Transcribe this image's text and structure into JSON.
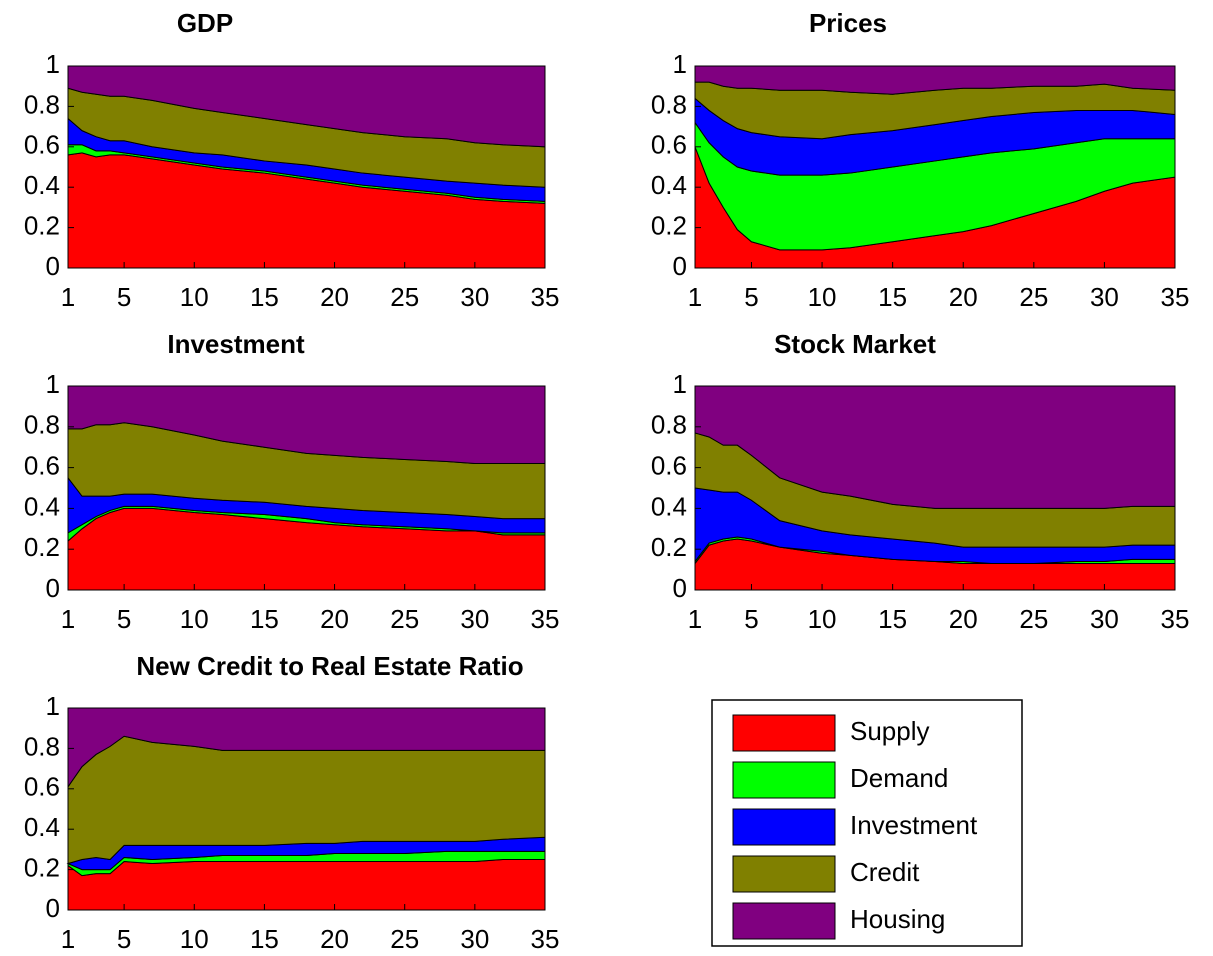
{
  "chart_data": [
    {
      "type": "stacked-area",
      "title": "GDP",
      "x": [
        1,
        2,
        3,
        4,
        5,
        7,
        10,
        12,
        15,
        18,
        20,
        22,
        25,
        28,
        30,
        32,
        35
      ],
      "series": [
        {
          "values": [
            0.56,
            0.57,
            0.55,
            0.56,
            0.56,
            0.54,
            0.51,
            0.49,
            0.47,
            0.44,
            0.42,
            0.4,
            0.38,
            0.36,
            0.34,
            0.33,
            0.32
          ]
        },
        {
          "values": [
            0.05,
            0.04,
            0.03,
            0.02,
            0.01,
            0.01,
            0.01,
            0.01,
            0.01,
            0.01,
            0.01,
            0.01,
            0.01,
            0.01,
            0.01,
            0.01,
            0.01
          ]
        },
        {
          "values": [
            0.13,
            0.07,
            0.07,
            0.05,
            0.06,
            0.05,
            0.05,
            0.06,
            0.05,
            0.06,
            0.06,
            0.06,
            0.06,
            0.06,
            0.07,
            0.07,
            0.07
          ]
        },
        {
          "values": [
            0.15,
            0.19,
            0.21,
            0.22,
            0.22,
            0.23,
            0.22,
            0.21,
            0.21,
            0.2,
            0.2,
            0.2,
            0.2,
            0.21,
            0.2,
            0.2,
            0.2
          ]
        },
        {
          "values": [
            0.11,
            0.13,
            0.14,
            0.15,
            0.15,
            0.17,
            0.21,
            0.23,
            0.26,
            0.29,
            0.31,
            0.33,
            0.35,
            0.36,
            0.38,
            0.39,
            0.4
          ]
        }
      ],
      "xlim": [
        1,
        35
      ],
      "xticks": [
        1,
        5,
        10,
        15,
        20,
        25,
        30,
        35
      ],
      "ylim": [
        0,
        1
      ],
      "yticks": [
        0,
        0.2,
        0.4,
        0.6,
        0.8,
        1
      ]
    },
    {
      "type": "stacked-area",
      "title": "Prices",
      "x": [
        1,
        2,
        3,
        4,
        5,
        7,
        10,
        12,
        15,
        18,
        20,
        22,
        25,
        28,
        30,
        32,
        35
      ],
      "series": [
        {
          "values": [
            0.6,
            0.42,
            0.3,
            0.19,
            0.13,
            0.09,
            0.09,
            0.1,
            0.13,
            0.16,
            0.18,
            0.21,
            0.27,
            0.33,
            0.38,
            0.42,
            0.45
          ]
        },
        {
          "values": [
            0.12,
            0.2,
            0.25,
            0.31,
            0.35,
            0.37,
            0.37,
            0.37,
            0.37,
            0.37,
            0.37,
            0.36,
            0.32,
            0.29,
            0.26,
            0.22,
            0.19
          ]
        },
        {
          "values": [
            0.12,
            0.16,
            0.18,
            0.19,
            0.19,
            0.19,
            0.18,
            0.19,
            0.18,
            0.18,
            0.18,
            0.18,
            0.18,
            0.16,
            0.14,
            0.14,
            0.12
          ]
        },
        {
          "values": [
            0.08,
            0.14,
            0.17,
            0.2,
            0.22,
            0.23,
            0.24,
            0.21,
            0.18,
            0.17,
            0.16,
            0.14,
            0.13,
            0.12,
            0.13,
            0.11,
            0.12
          ]
        },
        {
          "values": [
            0.08,
            0.08,
            0.1,
            0.11,
            0.11,
            0.12,
            0.12,
            0.13,
            0.14,
            0.12,
            0.11,
            0.11,
            0.1,
            0.1,
            0.09,
            0.11,
            0.12
          ]
        }
      ],
      "xlim": [
        1,
        35
      ],
      "xticks": [
        1,
        5,
        10,
        15,
        20,
        25,
        30,
        35
      ],
      "ylim": [
        0,
        1
      ],
      "yticks": [
        0,
        0.2,
        0.4,
        0.6,
        0.8,
        1
      ]
    },
    {
      "type": "stacked-area",
      "title": "Investment",
      "x": [
        1,
        2,
        3,
        4,
        5,
        7,
        10,
        12,
        15,
        18,
        20,
        22,
        25,
        28,
        30,
        32,
        35
      ],
      "series": [
        {
          "values": [
            0.24,
            0.3,
            0.35,
            0.38,
            0.4,
            0.4,
            0.38,
            0.37,
            0.35,
            0.33,
            0.32,
            0.31,
            0.3,
            0.29,
            0.29,
            0.27,
            0.27
          ]
        },
        {
          "values": [
            0.04,
            0.02,
            0.01,
            0.01,
            0.01,
            0.01,
            0.01,
            0.01,
            0.02,
            0.02,
            0.01,
            0.01,
            0.01,
            0.01,
            0.0,
            0.01,
            0.01
          ]
        },
        {
          "values": [
            0.27,
            0.14,
            0.1,
            0.07,
            0.06,
            0.06,
            0.06,
            0.06,
            0.06,
            0.06,
            0.07,
            0.07,
            0.07,
            0.07,
            0.07,
            0.07,
            0.07
          ]
        },
        {
          "values": [
            0.24,
            0.33,
            0.35,
            0.35,
            0.35,
            0.33,
            0.31,
            0.29,
            0.27,
            0.26,
            0.26,
            0.26,
            0.26,
            0.26,
            0.26,
            0.27,
            0.27
          ]
        },
        {
          "values": [
            0.21,
            0.21,
            0.19,
            0.19,
            0.18,
            0.2,
            0.24,
            0.27,
            0.3,
            0.33,
            0.34,
            0.35,
            0.36,
            0.37,
            0.38,
            0.38,
            0.38
          ]
        }
      ],
      "xlim": [
        1,
        35
      ],
      "xticks": [
        1,
        5,
        10,
        15,
        20,
        25,
        30,
        35
      ],
      "ylim": [
        0,
        1
      ],
      "yticks": [
        0,
        0.2,
        0.4,
        0.6,
        0.8,
        1
      ]
    },
    {
      "type": "stacked-area",
      "title": "Stock Market",
      "x": [
        1,
        2,
        3,
        4,
        5,
        7,
        10,
        12,
        15,
        18,
        20,
        22,
        25,
        28,
        30,
        32,
        35
      ],
      "series": [
        {
          "values": [
            0.13,
            0.22,
            0.24,
            0.25,
            0.24,
            0.21,
            0.18,
            0.17,
            0.15,
            0.14,
            0.13,
            0.13,
            0.13,
            0.13,
            0.13,
            0.13,
            0.13
          ]
        },
        {
          "values": [
            0.01,
            0.01,
            0.01,
            0.01,
            0.01,
            0.0,
            0.01,
            0.0,
            0.0,
            0.0,
            0.01,
            0.0,
            0.0,
            0.01,
            0.01,
            0.02,
            0.02
          ]
        },
        {
          "values": [
            0.36,
            0.26,
            0.23,
            0.22,
            0.19,
            0.13,
            0.1,
            0.1,
            0.1,
            0.09,
            0.07,
            0.08,
            0.08,
            0.07,
            0.07,
            0.07,
            0.07
          ]
        },
        {
          "values": [
            0.27,
            0.26,
            0.23,
            0.23,
            0.22,
            0.21,
            0.19,
            0.19,
            0.17,
            0.17,
            0.19,
            0.19,
            0.19,
            0.19,
            0.19,
            0.19,
            0.19
          ]
        },
        {
          "values": [
            0.23,
            0.25,
            0.29,
            0.29,
            0.34,
            0.45,
            0.52,
            0.54,
            0.58,
            0.6,
            0.6,
            0.6,
            0.6,
            0.6,
            0.6,
            0.59,
            0.59
          ]
        }
      ],
      "xlim": [
        1,
        35
      ],
      "xticks": [
        1,
        5,
        10,
        15,
        20,
        25,
        30,
        35
      ],
      "ylim": [
        0,
        1
      ],
      "yticks": [
        0,
        0.2,
        0.4,
        0.6,
        0.8,
        1
      ]
    },
    {
      "type": "stacked-area",
      "title": "New Credit to Real Estate Ratio",
      "x": [
        1,
        2,
        3,
        4,
        5,
        7,
        10,
        12,
        15,
        18,
        20,
        22,
        25,
        28,
        30,
        32,
        35
      ],
      "series": [
        {
          "values": [
            0.22,
            0.17,
            0.18,
            0.18,
            0.24,
            0.23,
            0.24,
            0.24,
            0.24,
            0.24,
            0.24,
            0.24,
            0.24,
            0.24,
            0.24,
            0.25,
            0.25
          ]
        },
        {
          "values": [
            0.01,
            0.03,
            0.02,
            0.02,
            0.02,
            0.02,
            0.02,
            0.03,
            0.03,
            0.03,
            0.04,
            0.04,
            0.04,
            0.05,
            0.05,
            0.04,
            0.04
          ]
        },
        {
          "values": [
            0,
            0.05,
            0.06,
            0.05,
            0.06,
            0.07,
            0.06,
            0.05,
            0.05,
            0.06,
            0.05,
            0.06,
            0.06,
            0.05,
            0.05,
            0.06,
            0.07
          ]
        },
        {
          "values": [
            0.38,
            0.46,
            0.51,
            0.56,
            0.54,
            0.51,
            0.49,
            0.47,
            0.47,
            0.46,
            0.46,
            0.45,
            0.45,
            0.45,
            0.45,
            0.44,
            0.43
          ]
        },
        {
          "values": [
            0.39,
            0.29,
            0.23,
            0.19,
            0.14,
            0.17,
            0.19,
            0.21,
            0.21,
            0.21,
            0.21,
            0.21,
            0.21,
            0.21,
            0.21,
            0.21,
            0.21
          ]
        }
      ],
      "xlim": [
        1,
        35
      ],
      "xticks": [
        1,
        5,
        10,
        15,
        20,
        25,
        30,
        35
      ],
      "ylim": [
        0,
        1
      ],
      "yticks": [
        0,
        0.2,
        0.4,
        0.6,
        0.8,
        1
      ]
    }
  ],
  "legend": {
    "series": [
      {
        "name": "Supply",
        "color": "#ff0000"
      },
      {
        "name": "Demand",
        "color": "#00ff00"
      },
      {
        "name": "Investment",
        "color": "#0000ff"
      },
      {
        "name": "Credit",
        "color": "#808000"
      },
      {
        "name": "Housing",
        "color": "#800080"
      }
    ]
  }
}
